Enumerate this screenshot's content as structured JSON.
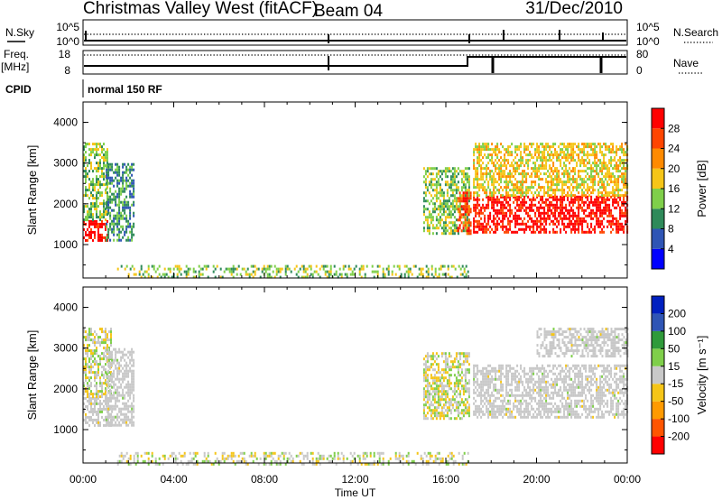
{
  "header": {
    "station": "Christmas Valley West (fitACF)",
    "beam": "Beam 04",
    "date": "31/Dec/2010"
  },
  "aux_panels": {
    "nsky_label": "N.Sky",
    "nsky_ticks": [
      "10^5",
      "10^0"
    ],
    "nsearch_label": "N.Search",
    "nsearch_ticks": [
      "10^5",
      "10^0"
    ],
    "freq_label": "Freq.",
    "freq_unit": "[MHz]",
    "freq_ticks": [
      "18",
      "8"
    ],
    "nave_label": "Nave",
    "nave_ticks": [
      "80",
      "0"
    ],
    "cpid_label": "CPID",
    "cpid_text": "normal 150 RF"
  },
  "colors": {
    "power_scale": [
      "#0000ff",
      "#2f55b5",
      "#2f8a5a",
      "#7fcf4a",
      "#f5c518",
      "#ff8a00",
      "#ff4500",
      "#ff0000"
    ],
    "velocity_scale": [
      "#ff0000",
      "#ff5500",
      "#ff9a00",
      "#f5c518",
      "#c8c8c8",
      "#7fcf4a",
      "#2f9a3a",
      "#2f55b5",
      "#0020c0"
    ],
    "ground_scatter": "#c8c8c8"
  },
  "chart_data": [
    {
      "type": "heatmap",
      "panel": "power",
      "ylabel": "Slant Range [km]",
      "yticks": [
        "1000",
        "2000",
        "3000",
        "4000"
      ],
      "ylim": [
        180,
        4500
      ],
      "xlabel": "Time UT",
      "xticks": [
        "00:00",
        "04:00",
        "08:00",
        "12:00",
        "16:00",
        "20:00",
        "00:00"
      ],
      "xlim_hours": [
        0,
        24
      ],
      "colorbar_label": "Power [dB]",
      "colorbar_ticks": [
        "4",
        "8",
        "12",
        "16",
        "20",
        "24",
        "28"
      ],
      "clim": [
        0,
        32
      ],
      "regions": [
        {
          "t": [
            0.0,
            1.1
          ],
          "r": [
            1100,
            1600
          ],
          "value": 30
        },
        {
          "t": [
            0.0,
            1.1
          ],
          "r": [
            1600,
            3500
          ],
          "value": 14
        },
        {
          "t": [
            1.0,
            2.2
          ],
          "r": [
            1100,
            3000
          ],
          "value": 10
        },
        {
          "t": [
            15.0,
            17.0
          ],
          "r": [
            1250,
            2900
          ],
          "value": 12
        },
        {
          "t": [
            16.5,
            17.1
          ],
          "r": [
            1300,
            2300
          ],
          "value": 26
        },
        {
          "t": [
            17.2,
            24.0
          ],
          "r": [
            1300,
            2200
          ],
          "value": 30
        },
        {
          "t": [
            17.2,
            24.0
          ],
          "r": [
            2200,
            3500
          ],
          "value": 18
        },
        {
          "t": [
            1.5,
            17.0
          ],
          "r": [
            180,
            500
          ],
          "value": 14
        }
      ]
    },
    {
      "type": "heatmap",
      "panel": "velocity",
      "ylabel": "Slant Range [km]",
      "yticks": [
        "1000",
        "2000",
        "3000",
        "4000"
      ],
      "ylim": [
        180,
        4500
      ],
      "xlabel": "Time UT",
      "xticks": [
        "00:00",
        "04:00",
        "08:00",
        "12:00",
        "16:00",
        "20:00",
        "00:00"
      ],
      "xlim_hours": [
        0,
        24
      ],
      "colorbar_label": "Velocity [m s⁻¹]",
      "colorbar_ticks": [
        "200",
        "100",
        "50",
        "15",
        "-15",
        "-50",
        "-100",
        "-200"
      ],
      "clim": [
        -250,
        250
      ],
      "regions": [
        {
          "t": [
            0.0,
            1.2
          ],
          "r": [
            1100,
            1800
          ],
          "value": 0
        },
        {
          "t": [
            0.0,
            1.2
          ],
          "r": [
            1800,
            3500
          ],
          "value": -30
        },
        {
          "t": [
            1.0,
            2.2
          ],
          "r": [
            1100,
            3000
          ],
          "value": 0
        },
        {
          "t": [
            15.0,
            17.0
          ],
          "r": [
            1300,
            2900
          ],
          "value": 30
        },
        {
          "t": [
            17.2,
            24.0
          ],
          "r": [
            1300,
            2600
          ],
          "value": 0
        },
        {
          "t": [
            20.0,
            24.0
          ],
          "r": [
            2800,
            3500
          ],
          "value": 0
        },
        {
          "t": [
            1.5,
            17.0
          ],
          "r": [
            180,
            450
          ],
          "value": 30
        }
      ]
    }
  ]
}
